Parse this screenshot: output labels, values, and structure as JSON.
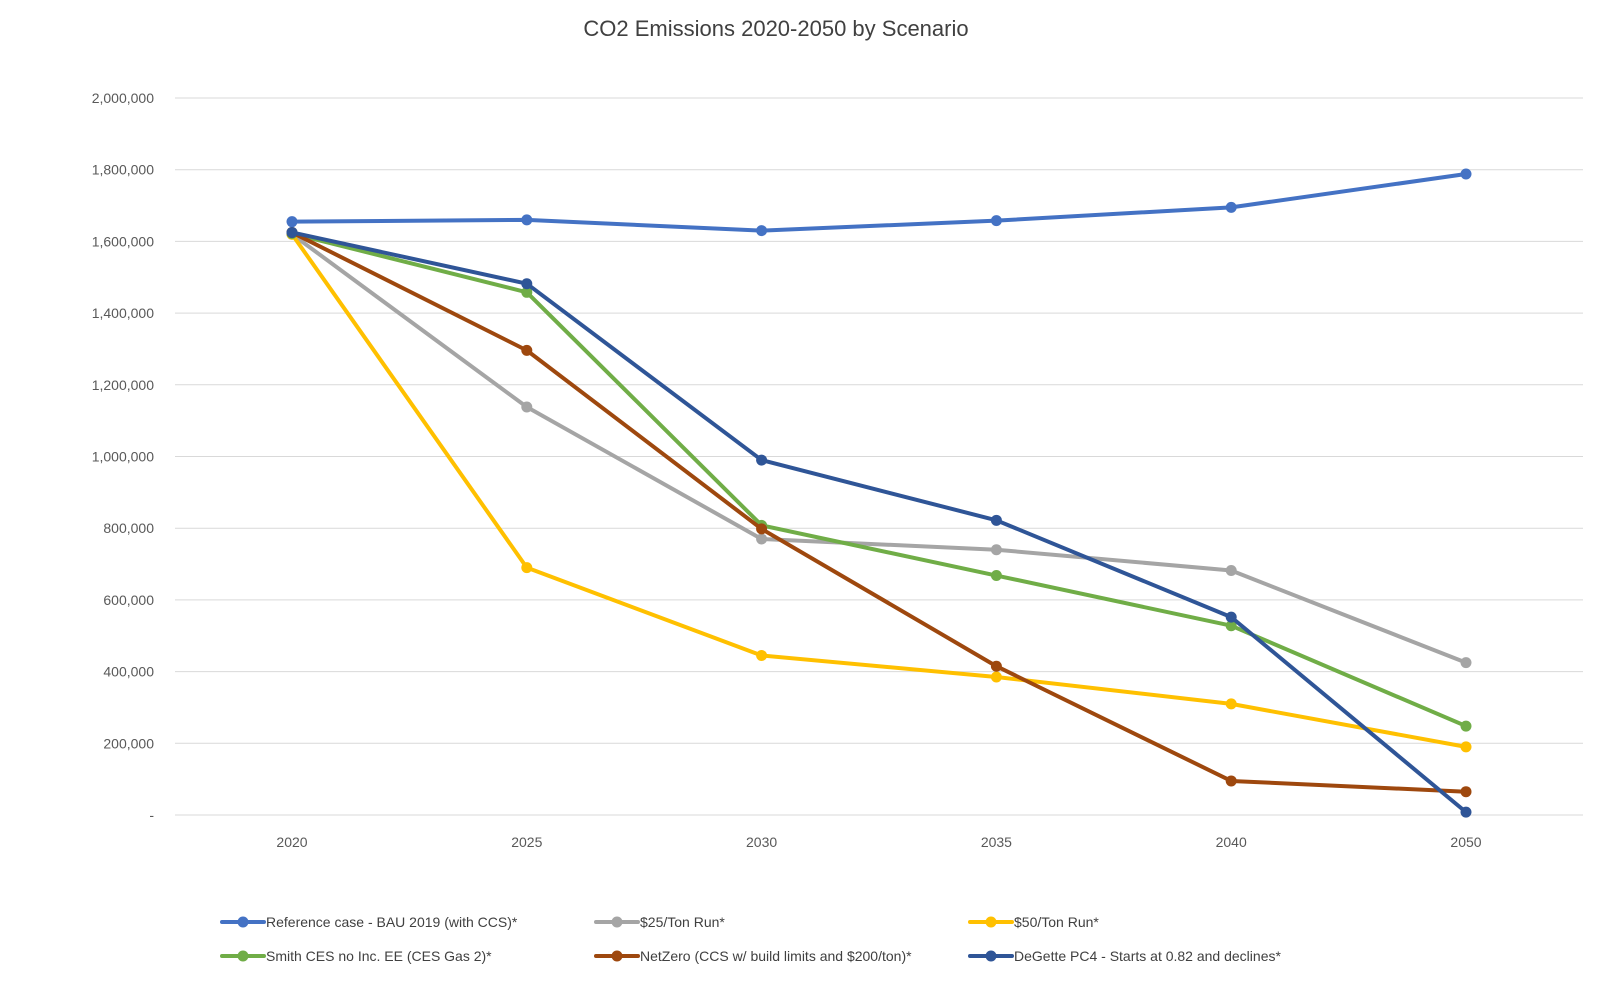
{
  "chart_data": {
    "type": "line",
    "title": "CO2 Emissions 2020-2050 by Scenario",
    "xlabel": "",
    "ylabel": "",
    "x": [
      "2020",
      "2025",
      "2030",
      "2035",
      "2040",
      "2050"
    ],
    "ylim": [
      0,
      2000000
    ],
    "y_ticks": [
      0,
      200000,
      400000,
      600000,
      800000,
      1000000,
      1200000,
      1400000,
      1600000,
      1800000,
      2000000
    ],
    "y_tick_labels": [
      "-",
      "200,000",
      "400,000",
      "600,000",
      "800,000",
      "1,000,000",
      "1,200,000",
      "1,400,000",
      "1,600,000",
      "1,800,000",
      "2,000,000"
    ],
    "grid": true,
    "legend_position": "bottom",
    "series": [
      {
        "name": "Reference case - BAU 2019 (with CCS)*",
        "color": "#4472C4",
        "values": [
          1655000,
          1660000,
          1630000,
          1658000,
          1695000,
          1788000
        ]
      },
      {
        "name": "$25/Ton Run*",
        "color": "#A5A5A5",
        "values": [
          1620000,
          1138000,
          770000,
          740000,
          682000,
          425000
        ]
      },
      {
        "name": "$50/Ton Run*",
        "color": "#FFC000",
        "values": [
          1620000,
          690000,
          445000,
          385000,
          310000,
          190000
        ]
      },
      {
        "name": "Smith CES no Inc. EE (CES Gas 2)*",
        "color": "#70AD47",
        "values": [
          1622000,
          1458000,
          808000,
          668000,
          528000,
          248000
        ]
      },
      {
        "name": "NetZero (CCS w/ build limits and $200/ton)*",
        "color": "#9E480E",
        "values": [
          1625000,
          1296000,
          798000,
          415000,
          95000,
          65000
        ]
      },
      {
        "name": "DeGette PC4 - Starts at 0.82 and declines*",
        "color": "#2F5597",
        "values": [
          1625000,
          1482000,
          990000,
          822000,
          552000,
          8000
        ]
      }
    ]
  }
}
